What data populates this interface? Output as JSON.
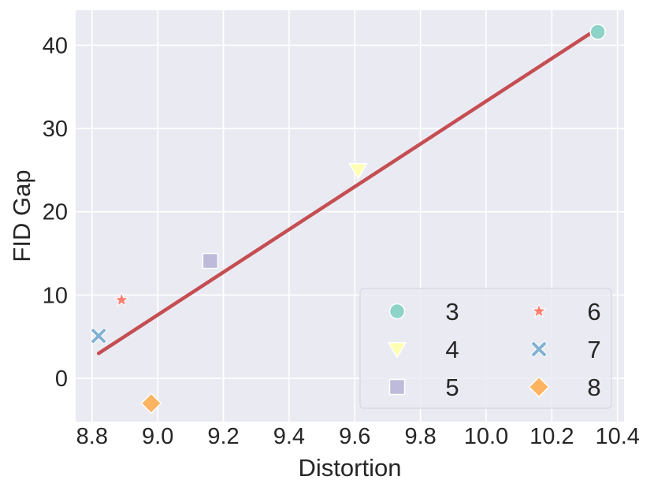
{
  "chart_data": {
    "type": "scatter",
    "title": "",
    "xlabel": "Distortion",
    "ylabel": "FID Gap",
    "xlim": [
      8.75,
      10.42
    ],
    "ylim": [
      -5.2,
      44.2
    ],
    "xticks": [
      8.8,
      9.0,
      9.2,
      9.4,
      9.6,
      9.8,
      10.0,
      10.2,
      10.4
    ],
    "xtick_labels": [
      "8.8",
      "9.0",
      "9.2",
      "9.4",
      "9.6",
      "9.8",
      "10.0",
      "10.2",
      "10.4"
    ],
    "yticks": [
      0,
      10,
      20,
      30,
      40
    ],
    "ytick_labels": [
      "0",
      "10",
      "20",
      "30",
      "40"
    ],
    "grid": true,
    "background": "#eaeaf2",
    "legend_placement": "lower-right",
    "legend_columns": 2,
    "series": [
      {
        "name": "3",
        "marker": "circle",
        "color": "#8dd3c7",
        "points": [
          [
            10.34,
            41.6
          ]
        ]
      },
      {
        "name": "4",
        "marker": "triangle-down",
        "color": "#ffffb3",
        "points": [
          [
            9.61,
            25.0
          ]
        ]
      },
      {
        "name": "5",
        "marker": "square",
        "color": "#bebada",
        "points": [
          [
            9.16,
            14.1
          ]
        ]
      },
      {
        "name": "6",
        "marker": "star",
        "color": "#fb8072",
        "points": [
          [
            8.89,
            9.4
          ]
        ]
      },
      {
        "name": "7",
        "marker": "x",
        "color": "#80b1d3",
        "points": [
          [
            8.82,
            5.1
          ]
        ]
      },
      {
        "name": "8",
        "marker": "diamond",
        "color": "#fdb462",
        "points": [
          [
            8.98,
            -3.0
          ]
        ]
      }
    ],
    "trend_line": {
      "color": "#c44e52",
      "points": [
        [
          8.82,
          3.0
        ],
        [
          10.34,
          42.0
        ]
      ]
    }
  }
}
